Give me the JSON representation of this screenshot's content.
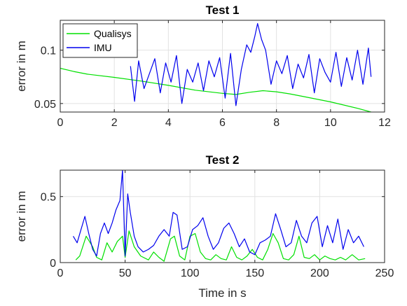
{
  "chart_data": [
    {
      "type": "line",
      "title": "Test 1",
      "xlabel": "",
      "ylabel": "error in m",
      "xlim": [
        0,
        12
      ],
      "ylim": [
        0.042,
        0.128
      ],
      "xticks": [
        0,
        2,
        4,
        6,
        8,
        10,
        12
      ],
      "xtick_labels": [
        "0",
        "2",
        "4",
        "6",
        "8",
        "10",
        "12"
      ],
      "yticks": [
        0.05,
        0.1
      ],
      "ytick_labels": [
        "0.05",
        "0.1"
      ],
      "grid": true,
      "legend": "top-left",
      "series": [
        {
          "name": "Qualisys",
          "color": "#00e000",
          "x": [
            0,
            0.5,
            1,
            2,
            3,
            4,
            5,
            6,
            6.5,
            7,
            7.5,
            8,
            8.5,
            9,
            10,
            11,
            11.5
          ],
          "y": [
            0.083,
            0.08,
            0.0775,
            0.0745,
            0.071,
            0.067,
            0.0625,
            0.0595,
            0.0585,
            0.0605,
            0.062,
            0.061,
            0.059,
            0.0565,
            0.0515,
            0.0455,
            0.042
          ]
        },
        {
          "name": "IMU",
          "color": "#0000ee",
          "x": [
            2.6,
            2.75,
            2.9,
            3.1,
            3.3,
            3.5,
            3.7,
            3.9,
            4.1,
            4.3,
            4.5,
            4.7,
            4.9,
            5.1,
            5.3,
            5.5,
            5.7,
            5.9,
            6.1,
            6.3,
            6.5,
            6.7,
            6.9,
            7.05,
            7.2,
            7.3,
            7.45,
            7.6,
            7.8,
            8.0,
            8.2,
            8.4,
            8.6,
            8.8,
            9.0,
            9.2,
            9.4,
            9.6,
            9.8,
            10.0,
            10.2,
            10.4,
            10.6,
            10.8,
            11.0,
            11.2,
            11.4,
            11.5
          ],
          "y": [
            0.085,
            0.052,
            0.09,
            0.064,
            0.078,
            0.092,
            0.06,
            0.088,
            0.07,
            0.095,
            0.05,
            0.082,
            0.07,
            0.088,
            0.062,
            0.09,
            0.075,
            0.093,
            0.055,
            0.097,
            0.048,
            0.082,
            0.105,
            0.098,
            0.113,
            0.125,
            0.11,
            0.1,
            0.068,
            0.09,
            0.078,
            0.095,
            0.064,
            0.087,
            0.074,
            0.096,
            0.06,
            0.092,
            0.079,
            0.07,
            0.098,
            0.066,
            0.093,
            0.072,
            0.1,
            0.068,
            0.102,
            0.075
          ]
        }
      ]
    },
    {
      "type": "line",
      "title": "Test 2",
      "xlabel": "Time in s",
      "ylabel": "error in m",
      "xlim": [
        0,
        250
      ],
      "ylim": [
        0,
        0.7
      ],
      "xticks": [
        0,
        50,
        100,
        150,
        200,
        250
      ],
      "xtick_labels": [
        "0",
        "50",
        "100",
        "150",
        "200",
        "250"
      ],
      "yticks": [
        0,
        0.5
      ],
      "ytick_labels": [
        "0",
        "0.5"
      ],
      "grid": true,
      "series": [
        {
          "name": "Qualisys",
          "color": "#00e000",
          "x": [
            12,
            15,
            20,
            25,
            28,
            32,
            36,
            40,
            44,
            48,
            50,
            53,
            57,
            62,
            68,
            72,
            76,
            80,
            85,
            88,
            92,
            96,
            100,
            104,
            108,
            112,
            116,
            120,
            124,
            128,
            132,
            136,
            140,
            144,
            148,
            152,
            156,
            160,
            164,
            168,
            172,
            176,
            180,
            184,
            188,
            192,
            196,
            200,
            204,
            208,
            212,
            216,
            220,
            225,
            230,
            235
          ],
          "y": [
            0.02,
            0.05,
            0.2,
            0.12,
            0.04,
            0.02,
            0.15,
            0.08,
            0.16,
            0.2,
            0.04,
            0.24,
            0.12,
            0.05,
            0.02,
            0.08,
            0.04,
            0.01,
            0.18,
            0.2,
            0.05,
            0.02,
            0.2,
            0.22,
            0.08,
            0.03,
            0.02,
            0.06,
            0.03,
            0.02,
            0.12,
            0.04,
            0.02,
            0.05,
            0.1,
            0.04,
            0.02,
            0.1,
            0.22,
            0.15,
            0.03,
            0.02,
            0.06,
            0.2,
            0.04,
            0.03,
            0.06,
            0.02,
            0.05,
            0.03,
            0.02,
            0.04,
            0.02,
            0.06,
            0.02,
            0.03
          ]
        },
        {
          "name": "IMU",
          "color": "#0000ee",
          "x": [
            10,
            13,
            16,
            19,
            22,
            25,
            28,
            31,
            34,
            37,
            40,
            43,
            46,
            48,
            50,
            52,
            54,
            57,
            60,
            64,
            68,
            72,
            76,
            80,
            84,
            87,
            90,
            94,
            98,
            102,
            106,
            110,
            114,
            118,
            122,
            126,
            130,
            134,
            138,
            142,
            146,
            150,
            154,
            158,
            162,
            166,
            170,
            174,
            178,
            182,
            186,
            190,
            194,
            198,
            202,
            206,
            210,
            214,
            218,
            222,
            226,
            230,
            234
          ],
          "y": [
            0.2,
            0.15,
            0.25,
            0.35,
            0.22,
            0.1,
            0.05,
            0.22,
            0.3,
            0.22,
            0.3,
            0.4,
            0.47,
            0.7,
            0.05,
            0.52,
            0.38,
            0.2,
            0.12,
            0.08,
            0.1,
            0.13,
            0.2,
            0.25,
            0.2,
            0.38,
            0.36,
            0.1,
            0.12,
            0.25,
            0.28,
            0.34,
            0.2,
            0.1,
            0.15,
            0.26,
            0.3,
            0.22,
            0.12,
            0.18,
            0.08,
            0.06,
            0.15,
            0.17,
            0.2,
            0.37,
            0.25,
            0.12,
            0.15,
            0.32,
            0.2,
            0.15,
            0.3,
            0.35,
            0.12,
            0.28,
            0.15,
            0.33,
            0.1,
            0.25,
            0.15,
            0.2,
            0.12
          ]
        }
      ]
    }
  ]
}
